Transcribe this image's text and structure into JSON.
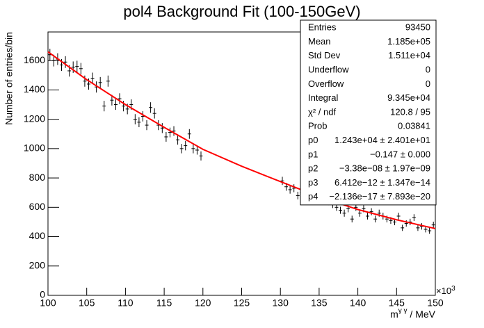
{
  "chart_data": {
    "type": "errorbar",
    "title": "pol4 Background Fit (100-150GeV)",
    "x_label": "m^{γγ} / MeV",
    "x_label_main": "m",
    "x_label_sup": "γ γ",
    "x_label_unit": " / MeV",
    "x_exponent": "×10",
    "x_exponent_power": "3",
    "y_label": "Number of entries/bin",
    "xlim": [
      100,
      150
    ],
    "ylim": [
      0,
      1795
    ],
    "xticks": [
      100,
      105,
      110,
      115,
      120,
      125,
      130,
      135,
      140,
      145,
      150
    ],
    "yticks": [
      0,
      200,
      400,
      600,
      800,
      1000,
      1200,
      1400,
      1600
    ],
    "series": [
      {
        "name": "data",
        "color": "#000000",
        "x": [
          100.25,
          100.75,
          101.25,
          101.75,
          102.25,
          102.75,
          103.25,
          103.75,
          104.25,
          104.75,
          105.25,
          105.75,
          106.25,
          106.75,
          107.25,
          107.75,
          108.25,
          108.75,
          109.25,
          109.75,
          110.25,
          110.75,
          111.25,
          111.75,
          112.25,
          112.75,
          113.25,
          113.75,
          114.25,
          114.75,
          115.25,
          115.75,
          116.25,
          116.75,
          117.25,
          117.75,
          118.25,
          118.75,
          119.25,
          119.75,
          130.25,
          130.75,
          131.25,
          131.75,
          132.25,
          132.75,
          133.25,
          133.75,
          134.25,
          134.75,
          135.25,
          135.75,
          136.25,
          136.75,
          137.25,
          137.75,
          138.25,
          138.75,
          139.25,
          139.75,
          140.25,
          140.75,
          141.25,
          141.75,
          142.25,
          142.75,
          143.25,
          143.75,
          144.25,
          144.75,
          145.25,
          145.75,
          146.25,
          146.75,
          147.25,
          147.75,
          148.25,
          148.75,
          149.25,
          149.75
        ],
        "values": [
          1640,
          1600,
          1610,
          1570,
          1590,
          1530,
          1555,
          1560,
          1545,
          1460,
          1440,
          1480,
          1420,
          1450,
          1290,
          1460,
          1330,
          1300,
          1340,
          1290,
          1270,
          1300,
          1200,
          1180,
          1220,
          1160,
          1280,
          1240,
          1160,
          1140,
          1080,
          1110,
          1120,
          1060,
          1000,
          1020,
          1100,
          1000,
          990,
          950,
          780,
          740,
          720,
          730,
          680,
          700,
          710,
          690,
          700,
          660,
          650,
          670,
          640,
          620,
          600,
          580,
          560,
          590,
          520,
          600,
          560,
          590,
          540,
          570,
          520,
          560,
          540,
          520,
          510,
          500,
          540,
          460,
          490,
          500,
          530,
          460,
          470,
          450,
          440,
          480
        ],
        "errors": [
          40,
          40,
          40,
          40,
          40,
          39,
          39,
          39,
          39,
          38,
          38,
          38,
          38,
          38,
          36,
          38,
          36,
          36,
          37,
          36,
          36,
          36,
          35,
          34,
          35,
          34,
          36,
          35,
          34,
          34,
          33,
          33,
          33,
          33,
          32,
          32,
          33,
          32,
          31,
          31,
          28,
          27,
          27,
          27,
          26,
          26,
          27,
          26,
          26,
          26,
          25,
          26,
          25,
          25,
          24,
          24,
          24,
          24,
          23,
          24,
          24,
          24,
          23,
          24,
          23,
          24,
          23,
          23,
          23,
          22,
          23,
          21,
          22,
          22,
          23,
          21,
          22,
          21,
          21,
          22
        ]
      }
    ],
    "fit": {
      "name": "pol4",
      "color": "#ff0000",
      "x": [
        100,
        105,
        110,
        115,
        120,
        125,
        130,
        135,
        140,
        145,
        150
      ],
      "values": [
        1660,
        1470,
        1300,
        1145,
        995,
        880,
        775,
        672,
        585,
        515,
        455
      ]
    },
    "stats": [
      {
        "label": "Entries",
        "value": "93450"
      },
      {
        "label": "Mean",
        "value": "1.185e+05"
      },
      {
        "label": "Std Dev",
        "value": "1.511e+04"
      },
      {
        "label": "Underflow",
        "value": "0"
      },
      {
        "label": "Overflow",
        "value": "0"
      },
      {
        "label": "Integral",
        "value": "9.345e+04"
      },
      {
        "label": "χ² / ndf",
        "value": "120.8 / 95"
      },
      {
        "label": "Prob",
        "value": "0.03841"
      },
      {
        "label": "p0",
        "value": "1.243e+04 ± 2.401e+01"
      },
      {
        "label": "p1",
        "value": "−0.147 ± 0.000"
      },
      {
        "label": "p2",
        "value": "−3.38e−08 ± 1.97e−09"
      },
      {
        "label": "p3",
        "value": "6.412e−12 ± 1.347e−14"
      },
      {
        "label": "p4",
        "value": "−2.136e−17 ± 7.893e−20"
      }
    ]
  }
}
